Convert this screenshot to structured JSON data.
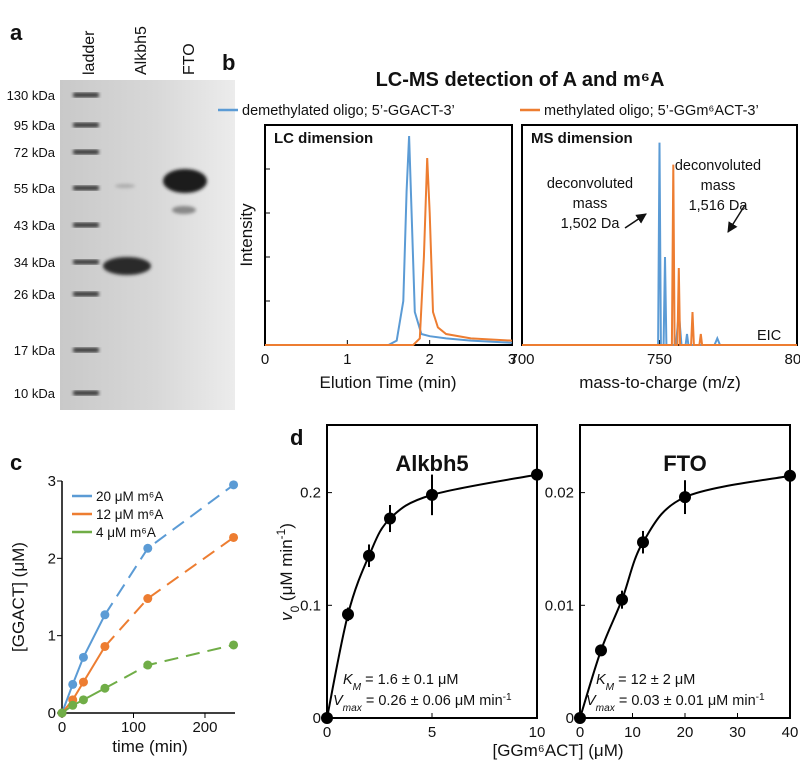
{
  "panel_labels": [
    "a",
    "b",
    "c",
    "d"
  ],
  "gel": {
    "lanes": [
      "ladder",
      "Alkbh5",
      "FTO"
    ],
    "markers": [
      "130 kDa",
      "95 kDa",
      "72 kDa",
      "55 kDa",
      "43 kDa",
      "34 kDa",
      "26 kDa",
      "17 kDa",
      "10 kDa"
    ]
  },
  "chart_data": [
    {
      "type": "line",
      "title": "LC-MS detection of A and m⁶A",
      "subtitle": "LC dimension",
      "xlabel": "Elution Time (min)",
      "ylabel": "Intensity",
      "xlim": [
        0,
        3
      ],
      "xticks": [
        0,
        1,
        2,
        3
      ],
      "ylim": [
        0,
        100
      ],
      "series": [
        {
          "name": "demethylated oligo; 5’-GGACT-3’",
          "color": "#5b9bd5",
          "x": [
            0,
            1.5,
            1.6,
            1.68,
            1.72,
            1.75,
            1.78,
            1.82,
            1.9,
            2.0,
            2.2,
            2.5,
            3.0
          ],
          "values": [
            0,
            0,
            2,
            20,
            70,
            95,
            60,
            15,
            5,
            4,
            3,
            2,
            1
          ]
        },
        {
          "name": "methylated oligo; 5’-GGm⁶ACT-3’",
          "color": "#ed7d31",
          "x": [
            0,
            1.8,
            1.88,
            1.93,
            1.97,
            2.0,
            2.04,
            2.1,
            2.2,
            2.5,
            3.0
          ],
          "values": [
            0,
            0,
            3,
            40,
            85,
            60,
            15,
            8,
            5,
            3,
            2
          ]
        }
      ]
    },
    {
      "type": "line",
      "subtitle": "MS dimension",
      "xlabel": "mass-to-charge (m/z)",
      "xlim": [
        700,
        800
      ],
      "xticks": [
        700,
        750,
        800
      ],
      "ylim": [
        0,
        100
      ],
      "annotations": [
        [
          "deconvoluted",
          "mass",
          "1,502 Da"
        ],
        [
          "deconvoluted",
          "mass",
          "1,516 Da"
        ],
        [
          "EIC"
        ]
      ],
      "series": [
        {
          "color": "#5b9bd5",
          "x": [
            700,
            749.5,
            750,
            750.5,
            751.5,
            752,
            752.5,
            756,
            757,
            758,
            759.5,
            760,
            760.5,
            770,
            771,
            772,
            800
          ],
          "values": [
            0,
            0,
            92,
            0,
            0,
            40,
            0,
            0,
            15,
            0,
            0,
            5,
            0,
            0,
            3,
            0,
            0
          ]
        },
        {
          "color": "#ed7d31",
          "x": [
            700,
            754.5,
            755,
            755.5,
            756.5,
            757,
            757.5,
            761.5,
            762,
            762.5,
            764.5,
            765,
            765.5,
            800
          ],
          "values": [
            0,
            0,
            82,
            0,
            0,
            35,
            0,
            0,
            15,
            0,
            0,
            5,
            0,
            0
          ]
        }
      ]
    },
    {
      "type": "scatter",
      "xlabel": "time (min)",
      "ylabel": "[GGACT] (μM)",
      "xlim": [
        0,
        242
      ],
      "xticks": [
        0,
        100,
        200
      ],
      "ylim": [
        0,
        3
      ],
      "yticks": [
        0,
        1,
        2,
        3
      ],
      "x": [
        0,
        15,
        30,
        60,
        120,
        240
      ],
      "series": [
        {
          "name": "20 μM m⁶A",
          "color": "#5b9bd5",
          "values": [
            0,
            0.37,
            0.72,
            1.27,
            2.13,
            2.95
          ]
        },
        {
          "name": "12 μM m⁶A",
          "color": "#ed7d31",
          "values": [
            0,
            0.17,
            0.4,
            0.86,
            1.48,
            2.27
          ]
        },
        {
          "name": "4 μM m⁶A",
          "color": "#70ad47",
          "values": [
            0,
            0.1,
            0.17,
            0.32,
            0.62,
            0.88
          ]
        }
      ]
    },
    {
      "type": "scatter",
      "title": "Alkbh5",
      "xlabel": "[GGm⁶ACT] (μM)",
      "ylabel": [
        "v",
        "0",
        " (μM min",
        "-1",
        ")"
      ],
      "xlim": [
        0,
        10
      ],
      "xticks": [
        0,
        5,
        10
      ],
      "ylim": [
        0,
        0.26
      ],
      "yticks": [
        0,
        0.1,
        0.2
      ],
      "x": [
        0,
        1,
        2,
        3,
        5,
        10
      ],
      "values": [
        0,
        0.092,
        0.144,
        0.177,
        0.198,
        0.216
      ],
      "errors": [
        0,
        0.006,
        0.01,
        0.012,
        0.018,
        0.01
      ],
      "color": "#000000",
      "annotations": [
        [
          "K",
          "M",
          " = 1.6 ± 0.1 μM"
        ],
        [
          "V",
          "max",
          " = 0.26 ± 0.06 μM min",
          "-1"
        ]
      ]
    },
    {
      "type": "scatter",
      "title": "FTO",
      "xlim": [
        0,
        40
      ],
      "xticks": [
        0,
        10,
        20,
        30,
        40
      ],
      "ylim": [
        0,
        0.026
      ],
      "yticks": [
        0,
        0.01,
        0.02
      ],
      "x": [
        0,
        4,
        8,
        12,
        20,
        40
      ],
      "values": [
        0,
        0.006,
        0.0105,
        0.0156,
        0.0196,
        0.0215
      ],
      "errors": [
        0,
        0.0004,
        0.0008,
        0.001,
        0.0015,
        0.0015
      ],
      "color": "#000000",
      "annotations": [
        [
          "K",
          "M",
          " = 12 ± 2 μM"
        ],
        [
          "V",
          "max",
          " = 0.03 ± 0.01 μM min",
          "-1"
        ]
      ]
    }
  ]
}
